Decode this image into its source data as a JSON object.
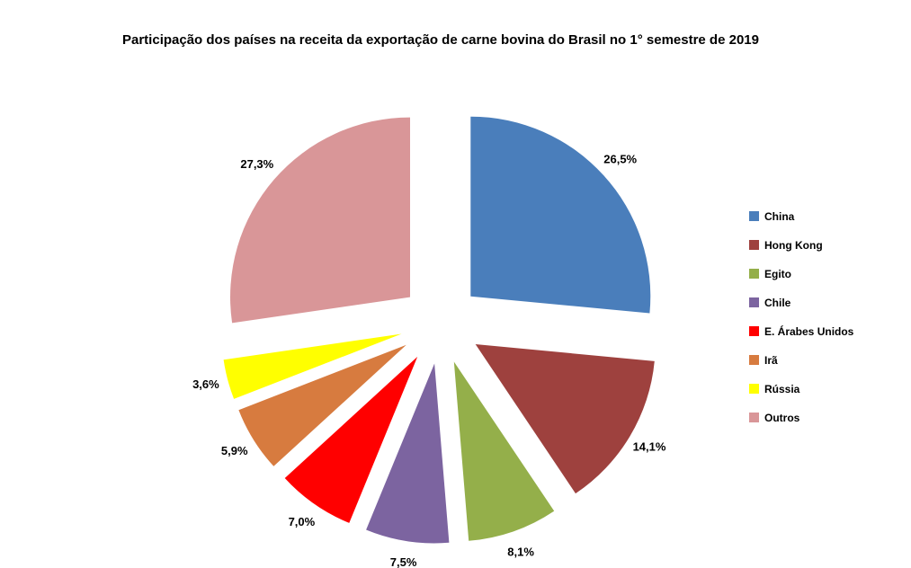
{
  "title": "Participação dos países na receita da exportação de carne bovina do Brasil no 1° semestre de 2019",
  "chart_data": {
    "type": "pie",
    "title": "Participação dos países na receita da exportação de carne bovina do Brasil no 1° semestre de 2019",
    "labels": [
      "China",
      "Hong Kong",
      "Egito",
      "Chile",
      "E. Árabes Unidos",
      "Irã",
      "Rússia",
      "Outros"
    ],
    "values": [
      26.5,
      14.1,
      8.1,
      7.5,
      7.0,
      5.9,
      3.6,
      27.3
    ],
    "value_labels": [
      "26,5%",
      "14,1%",
      "8,1%",
      "7,5%",
      "7,0%",
      "5,9%",
      "3,6%",
      "27,3%"
    ],
    "colors": [
      "#4A7EBB",
      "#9E413E",
      "#94AF4A",
      "#7C64A0",
      "#FF0000",
      "#D77B3F",
      "#FFFF00",
      "#D99698"
    ],
    "start_angle_deg": -90,
    "direction": "clockwise",
    "exploded": true,
    "legend_position": "right",
    "background": "#ffffff"
  },
  "legend": {
    "items": [
      {
        "label": "China",
        "color": "#4A7EBB"
      },
      {
        "label": "Hong Kong",
        "color": "#9E413E"
      },
      {
        "label": "Egito",
        "color": "#94AF4A"
      },
      {
        "label": "Chile",
        "color": "#7C64A0"
      },
      {
        "label": "E. Árabes Unidos",
        "color": "#FF0000"
      },
      {
        "label": "Irã",
        "color": "#D77B3F"
      },
      {
        "label": "Rússia",
        "color": "#FFFF00"
      },
      {
        "label": "Outros",
        "color": "#D99698"
      }
    ]
  }
}
